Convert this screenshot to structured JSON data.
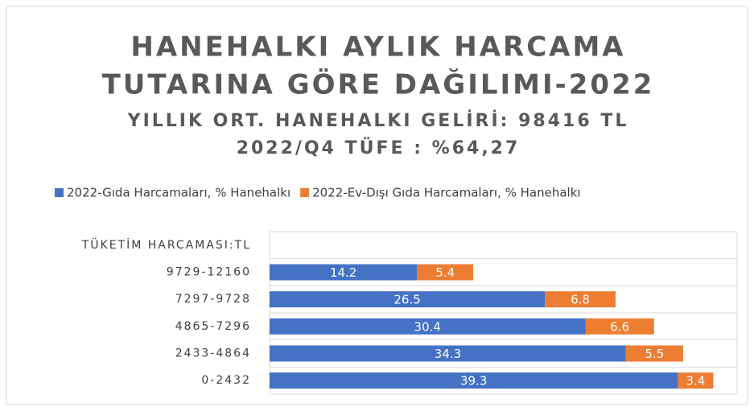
{
  "chart_data": {
    "type": "stacked_barh",
    "title": [
      "HANEHALKI AYLIK HARCAMA",
      "TUTARINA GÖRE DAĞILIMI-2022"
    ],
    "subtitle": [
      "YILLIK ORT. HANEHALKI GELİRİ: 98416 TL",
      "2022/Q4 TÜFE : %64,27"
    ],
    "categories": [
      "TÜKETİM HARCAMASI:TL",
      "9729-12160",
      "7297-9728",
      "4865-7296",
      "2433-4864",
      "0-2432"
    ],
    "series": [
      {
        "name": "2022-Gıda Harcamaları, % Hanehalkı",
        "color": "#4472c4",
        "values": [
          null,
          14.2,
          26.5,
          30.4,
          34.3,
          39.3
        ]
      },
      {
        "name": "2022-Ev-Dışı Gıda Harcamaları, % Hanehalkı",
        "color": "#ed7d31",
        "values": [
          null,
          5.4,
          6.8,
          6.6,
          5.5,
          3.4
        ]
      }
    ],
    "xlim": [
      0,
      45
    ],
    "grid": true,
    "legend": "top"
  }
}
